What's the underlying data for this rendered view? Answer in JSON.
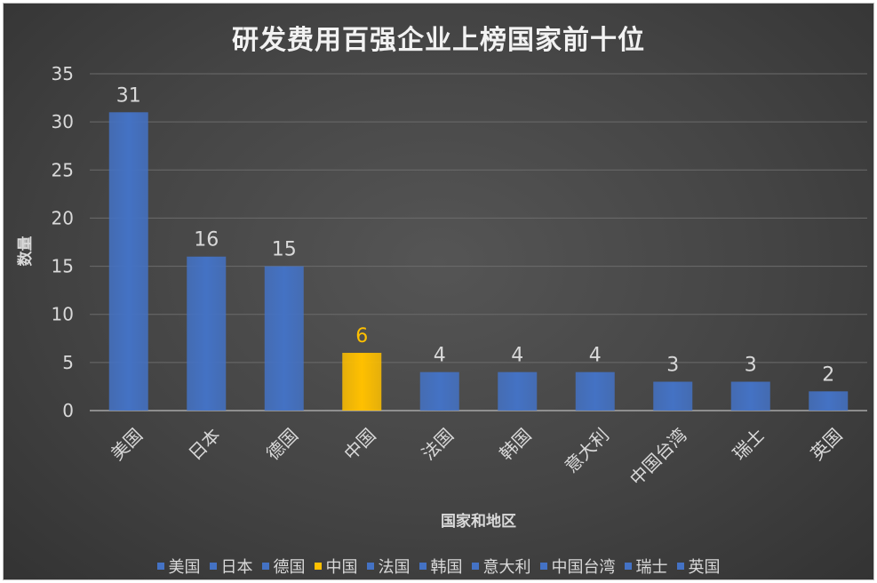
{
  "chart_data": {
    "type": "bar",
    "title": "研发费用百强企业上榜国家前十位",
    "xlabel": "国家和地区",
    "ylabel": "数量",
    "ylim": [
      0,
      35
    ],
    "yticks": [
      0,
      5,
      10,
      15,
      20,
      25,
      30,
      35
    ],
    "grid": true,
    "legend_position": "bottom",
    "categories": [
      "美国",
      "日本",
      "德国",
      "中国",
      "法国",
      "韩国",
      "意大利",
      "中国台湾",
      "瑞士",
      "英国"
    ],
    "values": [
      31,
      16,
      15,
      6,
      4,
      4,
      4,
      3,
      3,
      2
    ],
    "colors": [
      "#4472c4",
      "#4472c4",
      "#4472c4",
      "#ffc000",
      "#4472c4",
      "#4472c4",
      "#4472c4",
      "#4472c4",
      "#4472c4",
      "#4472c4"
    ],
    "data_label_colors": [
      "#d9d9d9",
      "#d9d9d9",
      "#d9d9d9",
      "#ffc000",
      "#d9d9d9",
      "#d9d9d9",
      "#d9d9d9",
      "#d9d9d9",
      "#d9d9d9",
      "#d9d9d9"
    ]
  },
  "colors": {
    "background": "#444444",
    "gridline": "#6b6b6b",
    "axis": "#a6a6a6",
    "text": "#d9d9d9",
    "bar_default": "#4472c4",
    "bar_highlight": "#ffc000"
  }
}
